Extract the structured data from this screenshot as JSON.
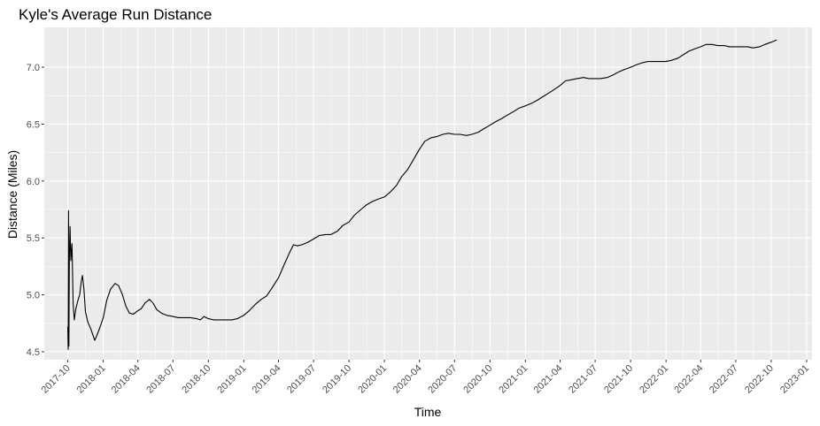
{
  "chart_data": {
    "type": "line",
    "title": "Kyle's Average Run Distance",
    "xlabel": "Time",
    "ylabel": "Distance (Miles)",
    "xlim": [
      "2017-08-01",
      "2023-01-15"
    ],
    "ylim": [
      4.43,
      7.35
    ],
    "x_ticks": [
      "2017-10",
      "2018-01",
      "2018-04",
      "2018-07",
      "2018-10",
      "2019-01",
      "2019-04",
      "2019-07",
      "2019-10",
      "2020-01",
      "2020-04",
      "2020-07",
      "2020-10",
      "2021-01",
      "2021-04",
      "2021-07",
      "2021-10",
      "2022-01",
      "2022-04",
      "2022-07",
      "2022-10",
      "2023-01"
    ],
    "y_ticks": [
      4.5,
      5.0,
      5.5,
      6.0,
      6.5,
      7.0
    ],
    "grid": true,
    "legend": "none",
    "colors": {
      "panel": "#ebebeb",
      "grid": "#ffffff",
      "line": "#000000"
    },
    "series": [
      {
        "values": [
          [
            "2017-10-01",
            4.72
          ],
          [
            "2017-10-02",
            4.52
          ],
          [
            "2017-10-03",
            5.74
          ],
          [
            "2017-10-04",
            4.55
          ],
          [
            "2017-10-05",
            5.3
          ],
          [
            "2017-10-07",
            5.6
          ],
          [
            "2017-10-09",
            5.3
          ],
          [
            "2017-10-12",
            5.45
          ],
          [
            "2017-10-15",
            4.92
          ],
          [
            "2017-10-18",
            4.78
          ],
          [
            "2017-10-22",
            4.88
          ],
          [
            "2017-10-28",
            4.96
          ],
          [
            "2017-11-01",
            5.0
          ],
          [
            "2017-11-05",
            5.12
          ],
          [
            "2017-11-08",
            5.17
          ],
          [
            "2017-11-12",
            5.05
          ],
          [
            "2017-11-16",
            4.85
          ],
          [
            "2017-11-22",
            4.76
          ],
          [
            "2017-11-30",
            4.7
          ],
          [
            "2017-12-05",
            4.65
          ],
          [
            "2017-12-10",
            4.6
          ],
          [
            "2017-12-15",
            4.64
          ],
          [
            "2017-12-22",
            4.7
          ],
          [
            "2018-01-01",
            4.8
          ],
          [
            "2018-01-10",
            4.95
          ],
          [
            "2018-01-20",
            5.05
          ],
          [
            "2018-02-01",
            5.1
          ],
          [
            "2018-02-10",
            5.08
          ],
          [
            "2018-02-20",
            5.0
          ],
          [
            "2018-03-01",
            4.9
          ],
          [
            "2018-03-10",
            4.84
          ],
          [
            "2018-03-20",
            4.83
          ],
          [
            "2018-04-01",
            4.86
          ],
          [
            "2018-04-10",
            4.88
          ],
          [
            "2018-04-20",
            4.93
          ],
          [
            "2018-05-01",
            4.96
          ],
          [
            "2018-05-10",
            4.93
          ],
          [
            "2018-05-20",
            4.87
          ],
          [
            "2018-06-01",
            4.84
          ],
          [
            "2018-06-15",
            4.82
          ],
          [
            "2018-07-01",
            4.81
          ],
          [
            "2018-07-15",
            4.8
          ],
          [
            "2018-08-01",
            4.8
          ],
          [
            "2018-08-15",
            4.8
          ],
          [
            "2018-09-01",
            4.79
          ],
          [
            "2018-09-10",
            4.78
          ],
          [
            "2018-09-20",
            4.81
          ],
          [
            "2018-10-01",
            4.79
          ],
          [
            "2018-10-15",
            4.78
          ],
          [
            "2018-11-01",
            4.78
          ],
          [
            "2018-11-15",
            4.78
          ],
          [
            "2018-12-01",
            4.78
          ],
          [
            "2018-12-15",
            4.79
          ],
          [
            "2019-01-01",
            4.82
          ],
          [
            "2019-01-15",
            4.86
          ],
          [
            "2019-02-01",
            4.92
          ],
          [
            "2019-02-15",
            4.96
          ],
          [
            "2019-03-01",
            4.99
          ],
          [
            "2019-03-15",
            5.06
          ],
          [
            "2019-04-01",
            5.15
          ],
          [
            "2019-04-15",
            5.26
          ],
          [
            "2019-05-01",
            5.38
          ],
          [
            "2019-05-10",
            5.44
          ],
          [
            "2019-05-20",
            5.43
          ],
          [
            "2019-06-01",
            5.44
          ],
          [
            "2019-06-15",
            5.46
          ],
          [
            "2019-07-01",
            5.49
          ],
          [
            "2019-07-15",
            5.52
          ],
          [
            "2019-08-01",
            5.53
          ],
          [
            "2019-08-15",
            5.53
          ],
          [
            "2019-09-01",
            5.56
          ],
          [
            "2019-09-15",
            5.61
          ],
          [
            "2019-10-01",
            5.64
          ],
          [
            "2019-10-15",
            5.7
          ],
          [
            "2019-11-01",
            5.75
          ],
          [
            "2019-11-15",
            5.79
          ],
          [
            "2019-12-01",
            5.82
          ],
          [
            "2019-12-15",
            5.84
          ],
          [
            "2020-01-01",
            5.86
          ],
          [
            "2020-01-15",
            5.9
          ],
          [
            "2020-02-01",
            5.96
          ],
          [
            "2020-02-15",
            6.04
          ],
          [
            "2020-03-01",
            6.1
          ],
          [
            "2020-03-15",
            6.18
          ],
          [
            "2020-04-01",
            6.28
          ],
          [
            "2020-04-15",
            6.35
          ],
          [
            "2020-05-01",
            6.38
          ],
          [
            "2020-05-15",
            6.39
          ],
          [
            "2020-06-01",
            6.41
          ],
          [
            "2020-06-15",
            6.42
          ],
          [
            "2020-07-01",
            6.41
          ],
          [
            "2020-07-15",
            6.41
          ],
          [
            "2020-08-01",
            6.4
          ],
          [
            "2020-08-15",
            6.41
          ],
          [
            "2020-09-01",
            6.43
          ],
          [
            "2020-09-15",
            6.46
          ],
          [
            "2020-10-01",
            6.49
          ],
          [
            "2020-10-15",
            6.52
          ],
          [
            "2020-11-01",
            6.55
          ],
          [
            "2020-11-15",
            6.58
          ],
          [
            "2020-12-01",
            6.61
          ],
          [
            "2020-12-15",
            6.64
          ],
          [
            "2021-01-01",
            6.66
          ],
          [
            "2021-01-15",
            6.68
          ],
          [
            "2021-02-01",
            6.71
          ],
          [
            "2021-02-15",
            6.74
          ],
          [
            "2021-03-01",
            6.77
          ],
          [
            "2021-03-15",
            6.8
          ],
          [
            "2021-04-01",
            6.84
          ],
          [
            "2021-04-15",
            6.88
          ],
          [
            "2021-05-01",
            6.89
          ],
          [
            "2021-05-15",
            6.9
          ],
          [
            "2021-06-01",
            6.91
          ],
          [
            "2021-06-15",
            6.9
          ],
          [
            "2021-07-01",
            6.9
          ],
          [
            "2021-07-15",
            6.9
          ],
          [
            "2021-08-01",
            6.91
          ],
          [
            "2021-08-15",
            6.93
          ],
          [
            "2021-09-01",
            6.96
          ],
          [
            "2021-09-15",
            6.98
          ],
          [
            "2021-10-01",
            7.0
          ],
          [
            "2021-10-15",
            7.02
          ],
          [
            "2021-11-01",
            7.04
          ],
          [
            "2021-11-15",
            7.05
          ],
          [
            "2021-12-01",
            7.05
          ],
          [
            "2021-12-15",
            7.05
          ],
          [
            "2022-01-01",
            7.05
          ],
          [
            "2022-01-15",
            7.06
          ],
          [
            "2022-02-01",
            7.08
          ],
          [
            "2022-02-15",
            7.11
          ],
          [
            "2022-03-01",
            7.14
          ],
          [
            "2022-03-15",
            7.16
          ],
          [
            "2022-04-01",
            7.18
          ],
          [
            "2022-04-15",
            7.2
          ],
          [
            "2022-05-01",
            7.2
          ],
          [
            "2022-05-15",
            7.19
          ],
          [
            "2022-06-01",
            7.19
          ],
          [
            "2022-06-15",
            7.18
          ],
          [
            "2022-07-01",
            7.18
          ],
          [
            "2022-07-15",
            7.18
          ],
          [
            "2022-08-01",
            7.18
          ],
          [
            "2022-08-15",
            7.17
          ],
          [
            "2022-09-01",
            7.18
          ],
          [
            "2022-09-15",
            7.2
          ],
          [
            "2022-10-01",
            7.22
          ],
          [
            "2022-10-15",
            7.24
          ]
        ]
      }
    ]
  }
}
